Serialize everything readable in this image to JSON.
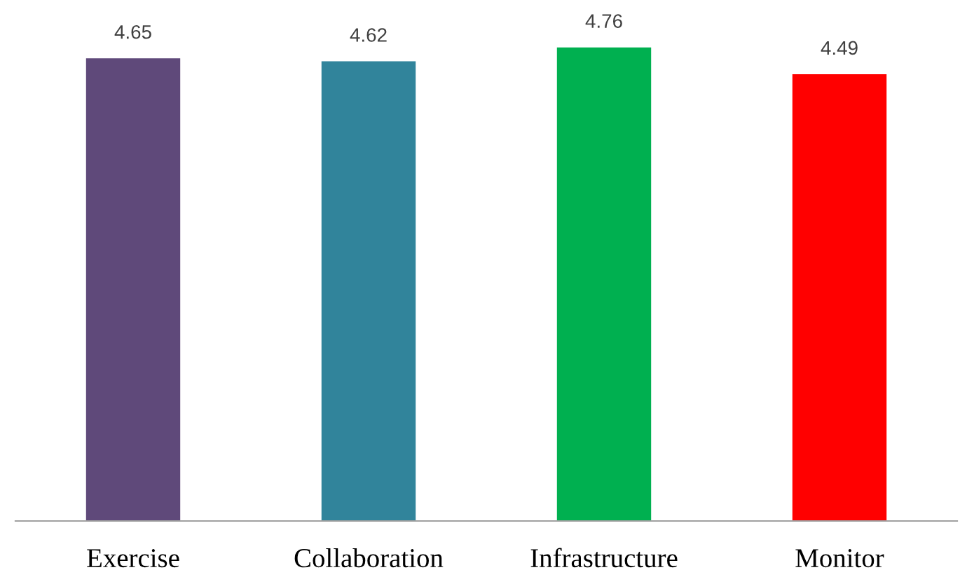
{
  "chart_data": {
    "type": "bar",
    "categories": [
      "Exercise",
      "Collaboration",
      "Infrastructure",
      "Monitor"
    ],
    "values": [
      4.65,
      4.62,
      4.76,
      4.49
    ],
    "colors": [
      "#5f497a",
      "#31849b",
      "#00b050",
      "#ff0000"
    ],
    "data_labels": true,
    "tick_labels": "x",
    "grid": false,
    "legend": false
  }
}
